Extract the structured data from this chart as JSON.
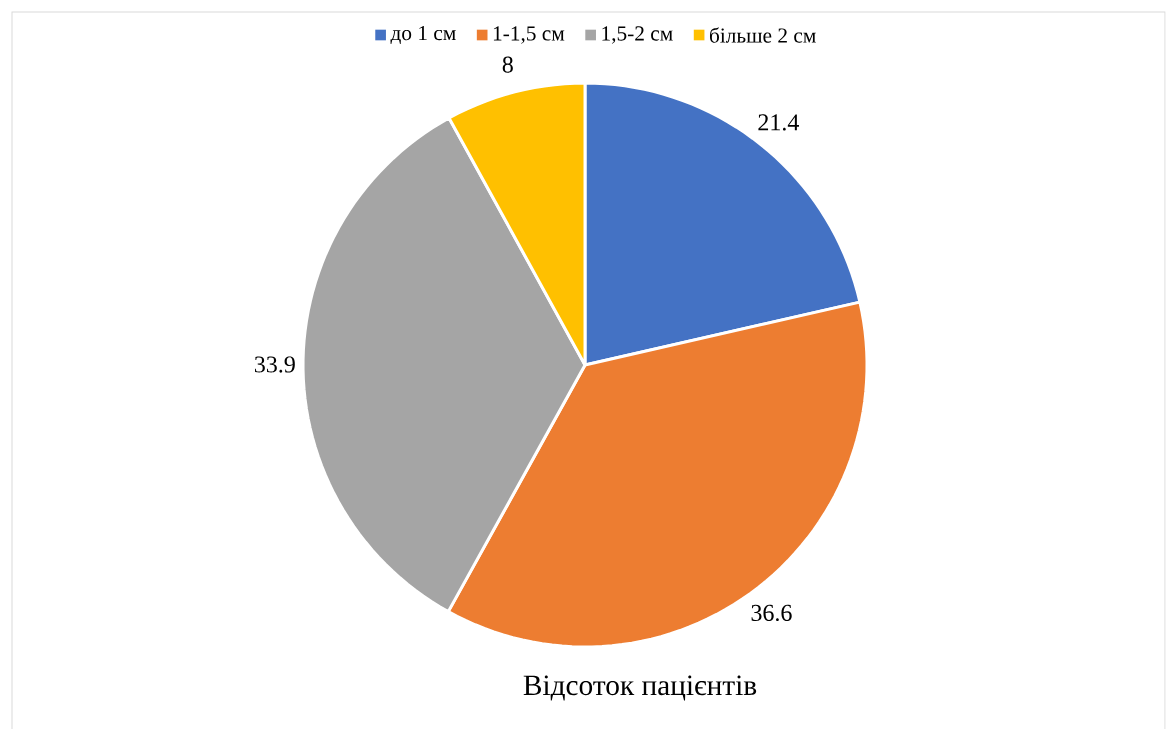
{
  "chart_data": {
    "type": "pie",
    "title": "Відсоток пацієнтів",
    "categories": [
      "до 1 см",
      "1-1,5 см",
      "1,5-2 см",
      "більше 2 см"
    ],
    "values": [
      21.4,
      36.6,
      33.9,
      8
    ],
    "colors": [
      "#4472c4",
      "#ed7d31",
      "#a5a5a5",
      "#ffc000"
    ],
    "data_labels": true,
    "legend": "top"
  }
}
